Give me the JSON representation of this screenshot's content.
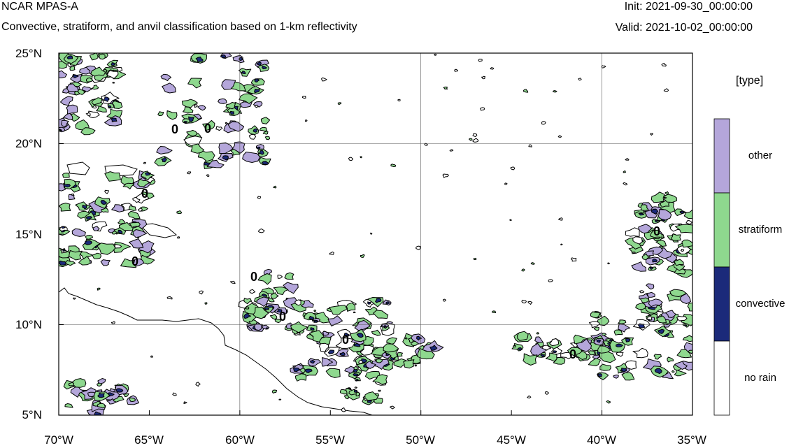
{
  "header": {
    "model_title": "NCAR MPAS-A",
    "subtitle": "Convective, stratiform, and anvil classification based on 1-km reflectivity",
    "init_label": "Init: 2021-09-30_00:00:00",
    "valid_label": "Valid: 2021-10-02_00:00:00"
  },
  "map": {
    "lon_ticks": [
      "70°W",
      "65°W",
      "60°W",
      "55°W",
      "50°W",
      "45°W",
      "40°W",
      "35°W"
    ],
    "lat_ticks": [
      "25°N",
      "20°N",
      "15°N",
      "10°N",
      "5°N"
    ],
    "lon_range": [
      -70,
      -35
    ],
    "lat_range": [
      5,
      25
    ],
    "grid_lons": [
      -60,
      -50,
      -40
    ],
    "grid_lats": [
      10,
      20
    ],
    "colors": {
      "convective": "#1b2a7a",
      "stratiform": "#8ed88e",
      "other": "#b4a6da",
      "no_rain": "#ffffff"
    }
  },
  "legend": {
    "title": "[type]",
    "entries": [
      {
        "label": "other",
        "color": "#b4a6da"
      },
      {
        "label": "stratiform",
        "color": "#8ed88e"
      },
      {
        "label": "convective",
        "color": "#1b2a7a"
      },
      {
        "label": "no rain",
        "color": "#ffffff"
      }
    ]
  }
}
